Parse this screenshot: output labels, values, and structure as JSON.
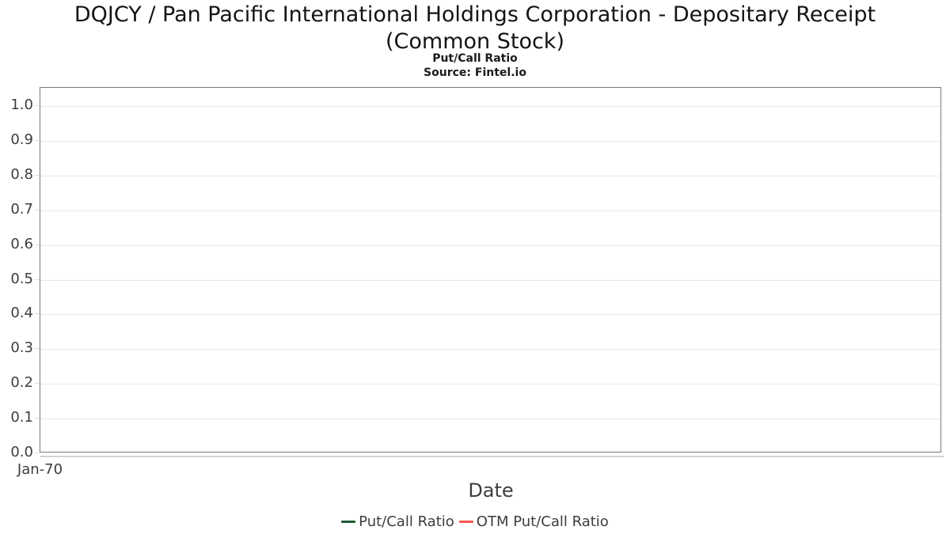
{
  "title": {
    "line1": "DQJCY / Pan Pacific International Holdings Corporation - Depositary Receipt",
    "line2": "(Common Stock)"
  },
  "subtitle": "Put/Call Ratio",
  "source": "Source: Fintel.io",
  "chart_data": {
    "type": "line",
    "title": "DQJCY / Pan Pacific International Holdings Corporation - Depositary Receipt (Common Stock)",
    "subtitle": "Put/Call Ratio",
    "source": "Source: Fintel.io",
    "xlabel": "Date",
    "ylabel": "",
    "x_tick_labels": [
      "Jan-70"
    ],
    "y_ticks": [
      0.0,
      0.1,
      0.2,
      0.3,
      0.4,
      0.5,
      0.6,
      0.7,
      0.8,
      0.9,
      1.0
    ],
    "y_tick_labels": [
      "0.0",
      "0.1",
      "0.2",
      "0.3",
      "0.4",
      "0.5",
      "0.6",
      "0.7",
      "0.8",
      "0.9",
      "1.0"
    ],
    "ylim": [
      0.0,
      1.05
    ],
    "grid": true,
    "legend_position": "bottom",
    "series": [
      {
        "name": "Put/Call Ratio",
        "color": "#1f5c33",
        "values": []
      },
      {
        "name": "OTM Put/Call Ratio",
        "color": "#f9564f",
        "values": []
      }
    ],
    "note": "no data points plotted; plot area is empty"
  },
  "colors": {
    "plot_border": "#7a7a7a",
    "gridline": "#e8e8e8",
    "tick": "#dcdcdc",
    "text": "#3d3d3d",
    "title_text": "#141414",
    "background": "#ffffff"
  }
}
